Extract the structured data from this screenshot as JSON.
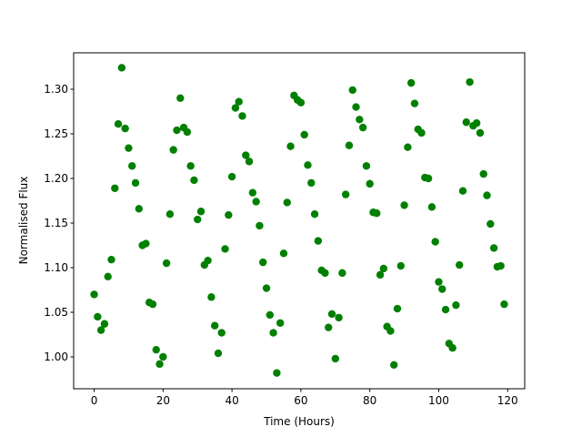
{
  "chart_data": {
    "type": "scatter",
    "x_label": "Time (Hours)",
    "y_label": "Normalised Flux",
    "color": "#008000",
    "xlim": [
      -5.95,
      124.95
    ],
    "ylim": [
      0.9643,
      1.3408
    ],
    "xticks": [
      0,
      20,
      40,
      60,
      80,
      100,
      120
    ],
    "yticks": [
      {
        "value": 1.0,
        "label": "1.00"
      },
      {
        "value": 1.05,
        "label": "1.05"
      },
      {
        "value": 1.1,
        "label": "1.10"
      },
      {
        "value": 1.15,
        "label": "1.15"
      },
      {
        "value": 1.2,
        "label": "1.20"
      },
      {
        "value": 1.25,
        "label": "1.25"
      },
      {
        "value": 1.3,
        "label": "1.30"
      }
    ],
    "x": [
      0,
      1,
      2,
      3,
      4,
      5,
      6,
      7,
      8,
      9,
      10,
      11,
      12,
      13,
      14,
      15,
      16,
      17,
      18,
      19,
      20,
      21,
      22,
      23,
      24,
      25,
      26,
      27,
      28,
      29,
      30,
      31,
      32,
      33,
      34,
      35,
      36,
      37,
      38,
      39,
      40,
      41,
      42,
      43,
      44,
      45,
      46,
      47,
      48,
      49,
      50,
      51,
      52,
      53,
      54,
      55,
      56,
      57,
      58,
      59,
      60,
      61,
      62,
      63,
      64,
      65,
      66,
      67,
      68,
      69,
      70,
      71,
      72,
      73,
      74,
      75,
      76,
      77,
      78,
      79,
      80,
      81,
      82,
      83,
      84,
      85,
      86,
      87,
      88,
      89,
      90,
      91,
      92,
      93,
      94,
      95,
      96,
      97,
      98,
      99,
      100,
      101,
      102,
      103,
      104,
      105,
      106,
      107,
      108,
      109,
      110,
      111,
      112,
      113,
      114,
      115,
      116,
      117,
      118,
      119
    ],
    "values": [
      1.07,
      1.045,
      1.03,
      1.037,
      1.09,
      1.109,
      1.189,
      1.261,
      1.324,
      1.256,
      1.234,
      1.214,
      1.195,
      1.166,
      1.125,
      1.127,
      1.061,
      1.059,
      1.008,
      0.992,
      1.0,
      1.105,
      1.16,
      1.232,
      1.254,
      1.29,
      1.257,
      1.252,
      1.214,
      1.198,
      1.154,
      1.163,
      1.103,
      1.108,
      1.067,
      1.035,
      1.004,
      1.027,
      1.121,
      1.159,
      1.202,
      1.279,
      1.286,
      1.27,
      1.226,
      1.219,
      1.184,
      1.174,
      1.147,
      1.106,
      1.077,
      1.047,
      1.027,
      0.982,
      1.038,
      1.116,
      1.173,
      1.236,
      1.293,
      1.288,
      1.285,
      1.249,
      1.215,
      1.195,
      1.16,
      1.13,
      1.097,
      1.094,
      1.033,
      1.048,
      0.998,
      1.044,
      1.094,
      1.182,
      1.237,
      1.299,
      1.28,
      1.266,
      1.257,
      1.214,
      1.194,
      1.162,
      1.161,
      1.092,
      1.099,
      1.034,
      1.029,
      0.991,
      1.054,
      1.102,
      1.17,
      1.235,
      1.307,
      1.284,
      1.255,
      1.251,
      1.201,
      1.2,
      1.168,
      1.129,
      1.084,
      1.076,
      1.053,
      1.015,
      1.01,
      1.058,
      1.103,
      1.186,
      1.263,
      1.308,
      1.259,
      1.262,
      1.251,
      1.205,
      1.181,
      1.149,
      1.122,
      1.101,
      1.102,
      1.059
    ]
  }
}
